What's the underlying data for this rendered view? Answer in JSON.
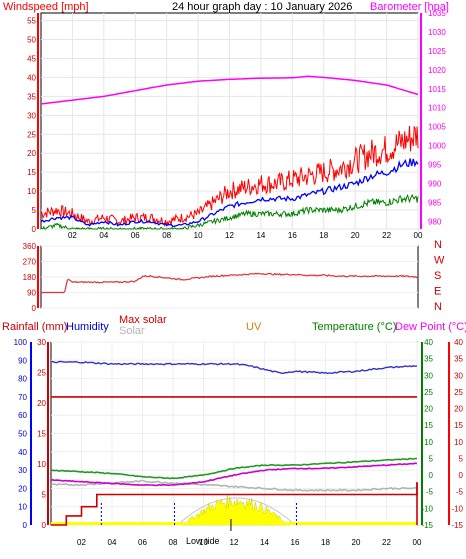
{
  "title": "24 hour graph day : 10 January 2026",
  "colors": {
    "wind": "#ff0000",
    "wind_avg": "#0000ff",
    "wind_low": "#008000",
    "barometer": "#ff00ff",
    "wind_dir": "#dd3333",
    "humidity": "#3333cc",
    "max_solar": "#cc0000",
    "solar": "#b4b4b4",
    "uv": "#cc8800",
    "temperature": "#229922",
    "dew": "#cc00cc",
    "rain": "#cc0000",
    "rain_axis": "#0000ff",
    "dewpoint_label": "#ff00ff",
    "temp_axis": "#008000",
    "dew_axis": "#ff0000",
    "sun": "#ffff00"
  },
  "hour_ticks": [
    "02",
    "04",
    "06",
    "08",
    "10",
    "12",
    "14",
    "16",
    "18",
    "20",
    "22",
    "00"
  ],
  "wind_panel": {
    "left_label": "Windspeed [mph]",
    "right_label": "Barometer [hpa]",
    "left_ticks": [
      "0",
      "5",
      "10",
      "15",
      "20",
      "25",
      "30",
      "35",
      "40",
      "45",
      "50",
      "55"
    ],
    "right_ticks": [
      "980",
      "985",
      "990",
      "995",
      "1000",
      "1005",
      "1010",
      "1015",
      "1020",
      "1025",
      "1030",
      "1035"
    ]
  },
  "dir_panel": {
    "left_ticks": [
      "0",
      "90",
      "180",
      "270",
      "360"
    ],
    "compass": [
      "N",
      "W",
      "S",
      "E",
      "N"
    ]
  },
  "bottom_panel": {
    "labels": {
      "rain": "Rainfall (mm)",
      "humidity": "Humidity",
      "max_solar": "Max solar",
      "solar": "Solar",
      "uv": "UV",
      "temperature": "Temperature (°C)",
      "dew": "Dew Point (°C)"
    },
    "humidity_ticks": [
      "0",
      "10",
      "20",
      "30",
      "40",
      "50",
      "60",
      "70",
      "80",
      "90",
      "100"
    ],
    "rain_ticks": [
      "0",
      "5",
      "10",
      "15",
      "20",
      "25",
      "30"
    ],
    "temp_ticks": [
      "-15",
      "-10",
      "-5",
      "0",
      "5",
      "10",
      "15",
      "20",
      "25",
      "30",
      "35",
      "40"
    ],
    "dew_ticks": [
      "-15",
      "-10",
      "-5",
      "0",
      "5",
      "10",
      "15",
      "20",
      "25",
      "30",
      "35",
      "40"
    ],
    "sun_label": "Low tide"
  },
  "chart_data": [
    {
      "type": "line",
      "title": "24 hour graph day : 10 January 2026",
      "x_unit": "hour",
      "y_left": "Windspeed [mph]",
      "ylim_left": [
        0,
        57
      ],
      "y_right": "Barometer [hpa]",
      "ylim_right": [
        978,
        1035
      ],
      "grid": true,
      "series": [
        {
          "name": "Windspeed [mph]",
          "axis": "left",
          "x": [
            0,
            1,
            2,
            3,
            4,
            5,
            6,
            7,
            8,
            9,
            10,
            11,
            12,
            13,
            14,
            15,
            16,
            17,
            18,
            19,
            20,
            21,
            22,
            23,
            24
          ],
          "values": [
            2,
            3,
            3,
            1,
            2,
            1,
            2,
            2,
            1,
            1,
            2,
            4,
            6,
            7,
            8,
            8,
            8,
            9,
            10,
            11,
            12,
            14,
            15,
            17,
            18
          ]
        },
        {
          "name": "Wind gust",
          "axis": "left",
          "x": [
            0,
            1,
            2,
            3,
            4,
            5,
            6,
            7,
            8,
            9,
            10,
            11,
            12,
            13,
            14,
            15,
            16,
            17,
            18,
            19,
            20,
            21,
            22,
            23,
            24
          ],
          "values": [
            4,
            5,
            4,
            2,
            3,
            2,
            3,
            3,
            2,
            3,
            4,
            7,
            10,
            11,
            12,
            12,
            13,
            14,
            15,
            16,
            18,
            20,
            21,
            23,
            25
          ]
        },
        {
          "name": "Wind low",
          "axis": "left",
          "x": [
            0,
            1,
            2,
            3,
            4,
            5,
            6,
            7,
            8,
            9,
            10,
            11,
            12,
            13,
            14,
            15,
            16,
            17,
            18,
            19,
            20,
            21,
            22,
            23,
            24
          ],
          "values": [
            0,
            1,
            0,
            0,
            0,
            0,
            0,
            0,
            0,
            0,
            1,
            2,
            3,
            4,
            4,
            4,
            4,
            5,
            5,
            5,
            6,
            7,
            7,
            8,
            8
          ]
        },
        {
          "name": "Barometer [hpa]",
          "axis": "right",
          "x": [
            0,
            2,
            4,
            6,
            8,
            10,
            12,
            14,
            16,
            17,
            18,
            20,
            22,
            24
          ],
          "values": [
            1011,
            1012,
            1013,
            1014.5,
            1016,
            1017,
            1017.5,
            1017.8,
            1017.9,
            1018.3,
            1018,
            1017.2,
            1016,
            1013.5
          ]
        }
      ]
    },
    {
      "type": "line",
      "x_unit": "hour",
      "y_left": "",
      "ylim_left": [
        0,
        360
      ],
      "series": [
        {
          "name": "",
          "x": [
            0,
            1.5,
            1.7,
            2,
            3,
            4,
            5,
            6,
            6.5,
            7,
            8,
            9,
            10,
            11,
            12,
            13,
            14,
            15,
            16,
            17,
            18,
            19,
            20,
            21,
            22,
            23,
            24
          ],
          "values": [
            90,
            90,
            170,
            150,
            150,
            150,
            150,
            155,
            185,
            185,
            175,
            165,
            175,
            185,
            190,
            195,
            200,
            195,
            195,
            190,
            190,
            185,
            185,
            185,
            185,
            185,
            180
          ]
        }
      ]
    },
    {
      "type": "line",
      "x_unit": "hour",
      "y_left": "Humidity",
      "ylim_left": [
        0,
        100
      ],
      "y_rain": "Rainfall (mm)",
      "ylim_rain": [
        0,
        30
      ],
      "y_right": "Temperature (°C)",
      "ylim_right": [
        -15,
        40
      ],
      "grid": true,
      "series": [
        {
          "name": "Humidity",
          "axis": "left",
          "x": [
            0,
            2,
            4,
            6,
            8,
            10,
            12,
            13,
            14,
            15,
            16,
            18,
            20,
            22,
            24
          ],
          "values": [
            89,
            89,
            88,
            88,
            88,
            88,
            88,
            87,
            85,
            83,
            84,
            83,
            84,
            86,
            87
          ]
        },
        {
          "name": "Max solar",
          "axis": "left",
          "x": [
            0,
            24
          ],
          "values": [
            70,
            70
          ]
        },
        {
          "name": "Solar",
          "axis": "left",
          "x": [
            0,
            2,
            4,
            6,
            8,
            10,
            12,
            14,
            16,
            18,
            20,
            22,
            24
          ],
          "values": [
            22,
            22,
            23,
            24,
            23,
            22,
            21,
            20,
            19,
            19,
            19,
            20,
            20
          ]
        },
        {
          "name": "Temperature (°C)",
          "axis": "right",
          "x": [
            0,
            2,
            4,
            6,
            8,
            10,
            12,
            14,
            16,
            18,
            20,
            22,
            24
          ],
          "values": [
            1.5,
            1,
            0.5,
            -0.5,
            -1,
            0,
            2,
            3,
            3,
            3.5,
            4,
            4.5,
            5
          ]
        },
        {
          "name": "Dew Point (°C)",
          "axis": "right",
          "x": [
            0,
            2,
            4,
            6,
            8,
            10,
            12,
            14,
            16,
            18,
            20,
            22,
            24
          ],
          "values": [
            -1.5,
            -2,
            -2.5,
            -3,
            -3,
            -2,
            0,
            1.5,
            2,
            2,
            2.5,
            3,
            3.5
          ]
        },
        {
          "name": "Rainfall (mm)",
          "axis": "rain",
          "x": [
            0,
            1,
            2,
            3,
            4,
            10,
            16,
            23.5,
            24
          ],
          "values": [
            0,
            1.5,
            3,
            5,
            5,
            5,
            5,
            5,
            7
          ]
        }
      ]
    }
  ]
}
